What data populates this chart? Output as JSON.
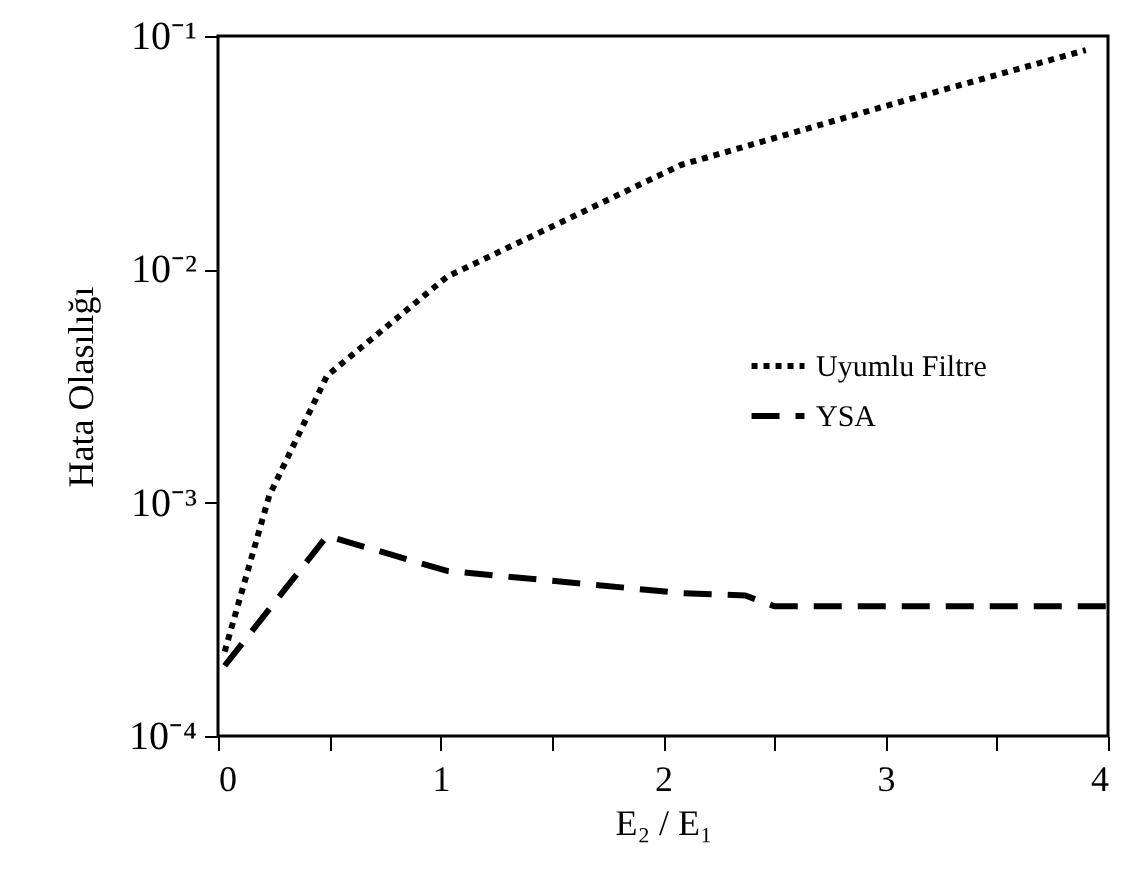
{
  "chart_data": {
    "type": "line",
    "xlabel": "E₂ / E₁",
    "ylabel": "Hata Olasılığı",
    "log": true,
    "grid": false,
    "legend": "right",
    "marker": "none",
    "xlim": [
      0,
      4
    ],
    "ylim": [
      0.0001,
      0.1
    ],
    "xticks": [
      0,
      {
        "value": 0.5,
        "label": null
      },
      1,
      {
        "value": 1.5,
        "label": null
      },
      2,
      {
        "value": 2.5,
        "label": null
      },
      3,
      {
        "value": 3.5,
        "label": null
      },
      4
    ],
    "yticks": [
      {
        "value": 0.0001,
        "label": "10⁻⁴"
      },
      {
        "value": 0.001,
        "label": "10⁻³"
      },
      {
        "value": 0.01,
        "label": "10⁻²"
      },
      {
        "value": 0.1,
        "label": "10⁻¹"
      }
    ],
    "series": [
      {
        "name": "Uyumlu Filtre",
        "color": "#000000",
        "line_style": "dotted",
        "x": [
          0.03,
          0.23,
          0.49,
          1.03,
          2.08,
          3.09,
          3.9
        ],
        "values": [
          0.00023,
          0.00107,
          0.0035,
          0.0093,
          0.028,
          0.053,
          0.087
        ]
      },
      {
        "name": "YSA",
        "color": "#000000",
        "line_style": "dashed",
        "x": [
          0.03,
          0.49,
          1.03,
          2.08,
          2.37,
          2.5,
          4.0
        ],
        "values": [
          0.0002,
          0.00072,
          0.00051,
          0.00041,
          0.0004,
          0.00036,
          0.00036
        ]
      }
    ]
  }
}
